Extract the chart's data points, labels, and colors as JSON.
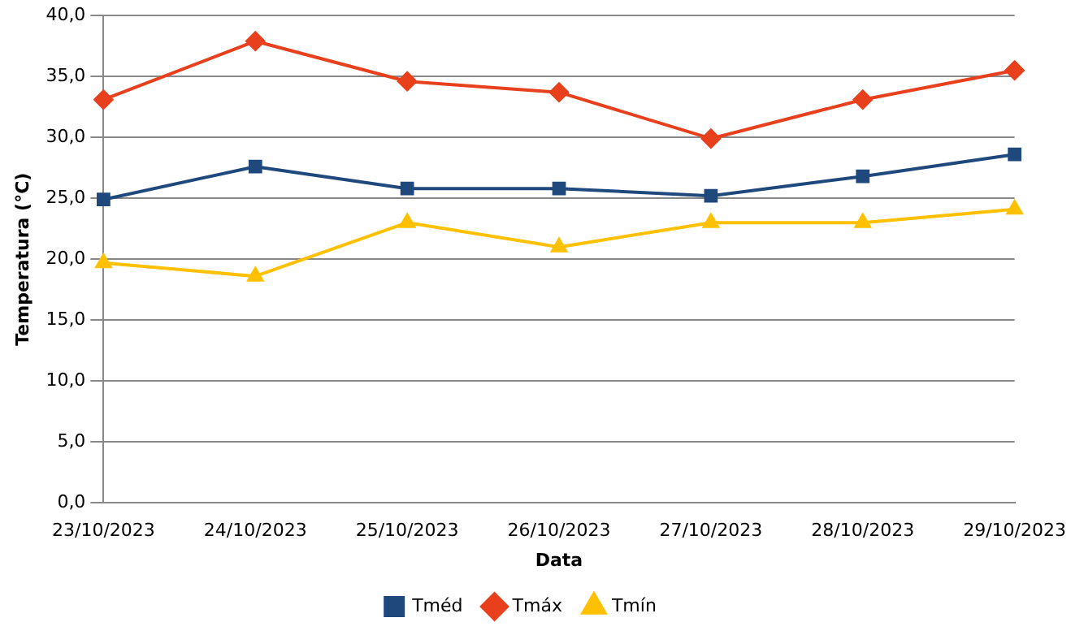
{
  "chart_data": {
    "type": "line",
    "xlabel": "Data",
    "ylabel": "Temperatura (°C)",
    "categories": [
      "23/10/2023",
      "24/10/2023",
      "25/10/2023",
      "26/10/2023",
      "27/10/2023",
      "28/10/2023",
      "29/10/2023"
    ],
    "series": [
      {
        "name": "Tméd",
        "color": "#1f497d",
        "marker": "square",
        "values": [
          24.9,
          27.6,
          25.8,
          25.8,
          25.2,
          26.8,
          28.6
        ]
      },
      {
        "name": "Tmáx",
        "color": "#e8401c",
        "marker": "diamond",
        "values": [
          33.1,
          37.9,
          34.6,
          33.7,
          29.9,
          33.1,
          35.5
        ]
      },
      {
        "name": "Tmín",
        "color": "#ffc000",
        "marker": "triangle",
        "values": [
          19.7,
          18.6,
          23.0,
          21.0,
          23.0,
          23.0,
          24.1
        ]
      }
    ],
    "ylim": [
      0,
      40
    ],
    "yticks": [
      {
        "value": 0,
        "label": "0,0"
      },
      {
        "value": 5,
        "label": "5,0"
      },
      {
        "value": 10,
        "label": "10,0"
      },
      {
        "value": 15,
        "label": "15,0"
      },
      {
        "value": 20,
        "label": "20,0"
      },
      {
        "value": 25,
        "label": "25,0"
      },
      {
        "value": 30,
        "label": "30,0"
      },
      {
        "value": 35,
        "label": "35,0"
      },
      {
        "value": 40,
        "label": "40,0"
      }
    ],
    "grid": "y",
    "legend": "bottom",
    "line_style": "solid"
  }
}
